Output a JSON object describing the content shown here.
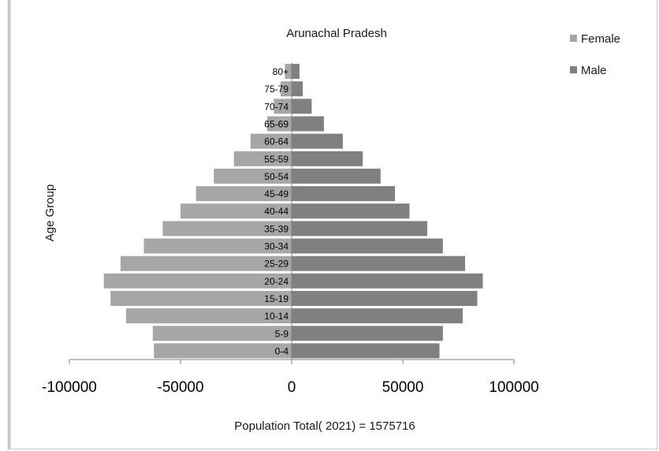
{
  "chart_data": {
    "type": "bar",
    "orientation": "horizontal",
    "title": "Arunachal Pradesh",
    "ylabel": "Age Group",
    "xlabel": "Population  Total( 2021) = 1575716",
    "categories": [
      "0-4",
      "5-9",
      "10-14",
      "15-19",
      "20-24",
      "25-29",
      "30-34",
      "35-39",
      "40-44",
      "45-49",
      "50-54",
      "55-59",
      "60-64",
      "65-69",
      "70-74",
      "75-79",
      "80+"
    ],
    "series": [
      {
        "name": "Female",
        "color": "#a6a6a6",
        "values": [
          -62000,
          -62500,
          -74500,
          -81500,
          -84500,
          -77000,
          -66500,
          -58000,
          -50000,
          -43000,
          -35000,
          -26000,
          -18500,
          -11000,
          -8000,
          -5000,
          -3000
        ]
      },
      {
        "name": "Male",
        "color": "#808080",
        "values": [
          66500,
          68000,
          77000,
          83500,
          86000,
          78000,
          68000,
          61000,
          53000,
          46500,
          40000,
          32000,
          23000,
          14500,
          9000,
          5000,
          3500
        ]
      }
    ],
    "xlim": [
      -100000,
      100000
    ],
    "xticks": [
      -100000,
      -50000,
      0,
      50000,
      100000
    ],
    "xtick_labels": [
      "-100000",
      "-50000",
      "0",
      "50000",
      "100000"
    ],
    "legend": "top-right",
    "grid": false
  }
}
